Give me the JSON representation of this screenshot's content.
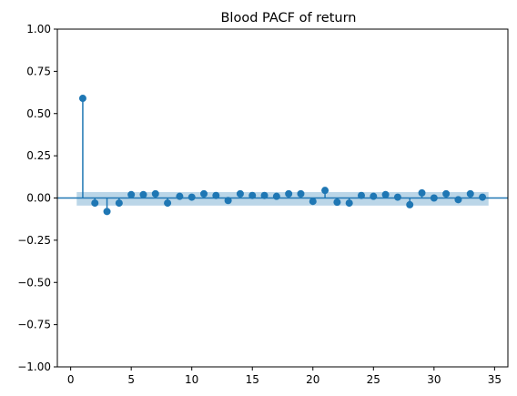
{
  "chart_data": {
    "type": "stem",
    "title": "Blood PACF of return",
    "xlabel": "",
    "ylabel": "",
    "xlim": [
      -1.1,
      36.1
    ],
    "ylim": [
      -1.0,
      1.0
    ],
    "xticks": [
      0,
      5,
      10,
      15,
      20,
      25,
      30,
      35
    ],
    "yticks": [
      -1.0,
      -0.75,
      -0.5,
      -0.25,
      0.0,
      0.25,
      0.5,
      0.75,
      1.0
    ],
    "ytick_labels": [
      "−1.00",
      "−0.75",
      "−0.50",
      "−0.25",
      "0.00",
      "0.25",
      "0.50",
      "0.75",
      "1.00"
    ],
    "xtick_labels": [
      "0",
      "5",
      "10",
      "15",
      "20",
      "25",
      "30",
      "35"
    ],
    "lags": [
      1,
      2,
      3,
      4,
      5,
      6,
      7,
      8,
      9,
      10,
      11,
      12,
      13,
      14,
      15,
      16,
      17,
      18,
      19,
      20,
      21,
      22,
      23,
      24,
      25,
      26,
      27,
      28,
      29,
      30,
      31,
      32,
      33,
      34
    ],
    "values": [
      0.59,
      -0.03,
      -0.08,
      -0.03,
      0.02,
      0.02,
      0.025,
      -0.03,
      0.01,
      0.005,
      0.025,
      0.015,
      -0.015,
      0.025,
      0.015,
      0.015,
      0.01,
      0.025,
      0.025,
      -0.02,
      0.045,
      -0.025,
      -0.03,
      0.015,
      0.01,
      0.02,
      0.005,
      -0.04,
      0.03,
      0.0,
      0.025,
      -0.01,
      0.025,
      0.005
    ],
    "confidence_band": {
      "x_range": [
        0.5,
        34.5
      ],
      "lower": -0.045,
      "upper": 0.035
    },
    "colors": {
      "series": "#1f77b4",
      "band": "#1f77b4",
      "band_opacity": 0.3
    }
  }
}
